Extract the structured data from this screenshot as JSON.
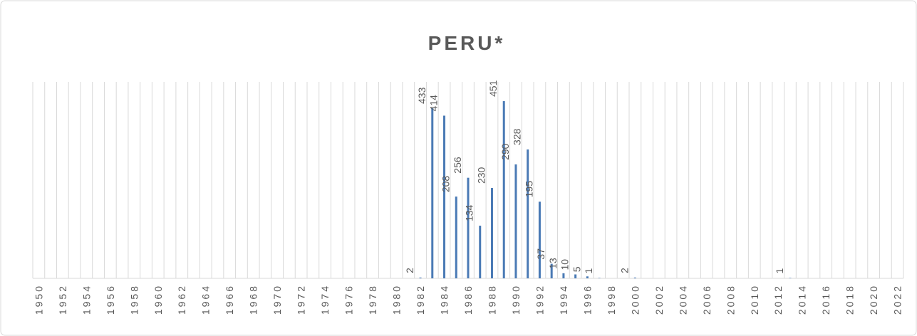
{
  "chart_data": {
    "type": "bar",
    "title": "PERU*",
    "categories": [
      "1950",
      null,
      "1952",
      null,
      "1954",
      null,
      "1956",
      null,
      "1958",
      null,
      "1960",
      null,
      "1962",
      null,
      "1964",
      null,
      "1966",
      null,
      "1968",
      null,
      "1970",
      null,
      "1972",
      null,
      "1974",
      null,
      "1976",
      null,
      "1978",
      null,
      "1980",
      null,
      "1982",
      null,
      "1984",
      null,
      "1986",
      null,
      "1988",
      null,
      "1990",
      null,
      "1992",
      null,
      "1994",
      null,
      "1996",
      null,
      "1998",
      null,
      "2000",
      null,
      "2002",
      null,
      "2004",
      null,
      "2006",
      null,
      "2008",
      null,
      "2010",
      null,
      "2012",
      null,
      "2014",
      null,
      "2016",
      null,
      "2018",
      null,
      "2020",
      null,
      "2022"
    ],
    "values": [
      0,
      0,
      0,
      0,
      0,
      0,
      0,
      0,
      0,
      0,
      0,
      0,
      0,
      0,
      0,
      0,
      0,
      0,
      0,
      0,
      0,
      0,
      0,
      0,
      0,
      0,
      0,
      0,
      0,
      0,
      0,
      0,
      2,
      433,
      414,
      208,
      256,
      134,
      230,
      451,
      290,
      328,
      195,
      37,
      13,
      10,
      5,
      1,
      0,
      0,
      2,
      0,
      0,
      0,
      0,
      0,
      0,
      0,
      0,
      0,
      0,
      0,
      0,
      1,
      0,
      0,
      0,
      0,
      0,
      0,
      0,
      0,
      0
    ],
    "color": "#4a7ab5",
    "ylim": [
      0,
      500
    ],
    "grid": true
  }
}
